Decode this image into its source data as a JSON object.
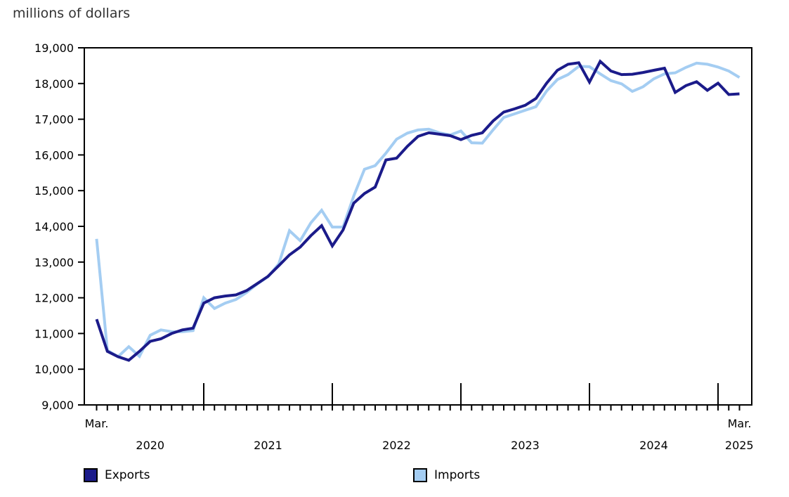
{
  "title": "millions of dollars",
  "chart_data": {
    "type": "line",
    "title": "millions of dollars",
    "ylabel": "millions of dollars",
    "grid": false,
    "legend_position": "bottom",
    "ylim": [
      9000,
      19000
    ],
    "y_ticks": [
      9000,
      10000,
      11000,
      12000,
      13000,
      14000,
      15000,
      16000,
      17000,
      18000,
      19000
    ],
    "x_axis": {
      "start_label": "Mar.",
      "end_label": "Mar.",
      "year_labels": [
        "2020",
        "2021",
        "2022",
        "2023",
        "2024",
        "2025"
      ],
      "year_tick_months": [
        "2021-01",
        "2022-01",
        "2023-01",
        "2024-01",
        "2025-01"
      ]
    },
    "x": [
      "2020-03",
      "2020-04",
      "2020-05",
      "2020-06",
      "2020-07",
      "2020-08",
      "2020-09",
      "2020-10",
      "2020-11",
      "2020-12",
      "2021-01",
      "2021-02",
      "2021-03",
      "2021-04",
      "2021-05",
      "2021-06",
      "2021-07",
      "2021-08",
      "2021-09",
      "2021-10",
      "2021-11",
      "2021-12",
      "2022-01",
      "2022-02",
      "2022-03",
      "2022-04",
      "2022-05",
      "2022-06",
      "2022-07",
      "2022-08",
      "2022-09",
      "2022-10",
      "2022-11",
      "2022-12",
      "2023-01",
      "2023-02",
      "2023-03",
      "2023-04",
      "2023-05",
      "2023-06",
      "2023-07",
      "2023-08",
      "2023-09",
      "2023-10",
      "2023-11",
      "2023-12",
      "2024-01",
      "2024-02",
      "2024-03",
      "2024-04",
      "2024-05",
      "2024-06",
      "2024-07",
      "2024-08",
      "2024-09",
      "2024-10",
      "2024-11",
      "2024-12",
      "2025-01",
      "2025-02",
      "2025-03"
    ],
    "series": [
      {
        "name": "Exports",
        "color": "#1b1b8a",
        "values": [
          11400,
          10500,
          10350,
          10250,
          10500,
          10780,
          10850,
          11000,
          11100,
          11150,
          11850,
          12000,
          12050,
          12080,
          12200,
          12400,
          12600,
          12900,
          13200,
          13420,
          13740,
          14020,
          13450,
          13900,
          14650,
          14920,
          15100,
          15860,
          15910,
          16240,
          16520,
          16620,
          16580,
          16540,
          16430,
          16550,
          16620,
          16950,
          17200,
          17290,
          17390,
          17580,
          18010,
          18370,
          18540,
          18580,
          18040,
          18620,
          18350,
          18250,
          18260,
          18310,
          18370,
          18430,
          17750,
          17940,
          18050,
          17810,
          18010,
          17690,
          17710
        ]
      },
      {
        "name": "Imports",
        "color": "#a4cdf2",
        "values": [
          13650,
          10530,
          10350,
          10630,
          10360,
          10950,
          11100,
          11050,
          11050,
          11080,
          12000,
          11700,
          11850,
          11950,
          12150,
          12390,
          12590,
          12950,
          13880,
          13600,
          14100,
          14450,
          13980,
          13980,
          14850,
          15600,
          15700,
          16050,
          16440,
          16610,
          16700,
          16720,
          16620,
          16560,
          16670,
          16340,
          16330,
          16700,
          17050,
          17150,
          17250,
          17350,
          17790,
          18110,
          18250,
          18480,
          18470,
          18270,
          18080,
          17990,
          17780,
          17910,
          18130,
          18270,
          18300,
          18450,
          18570,
          18540,
          18460,
          18350,
          18170
        ]
      }
    ],
    "axis_color": "#000000",
    "text_color": "#000000"
  }
}
